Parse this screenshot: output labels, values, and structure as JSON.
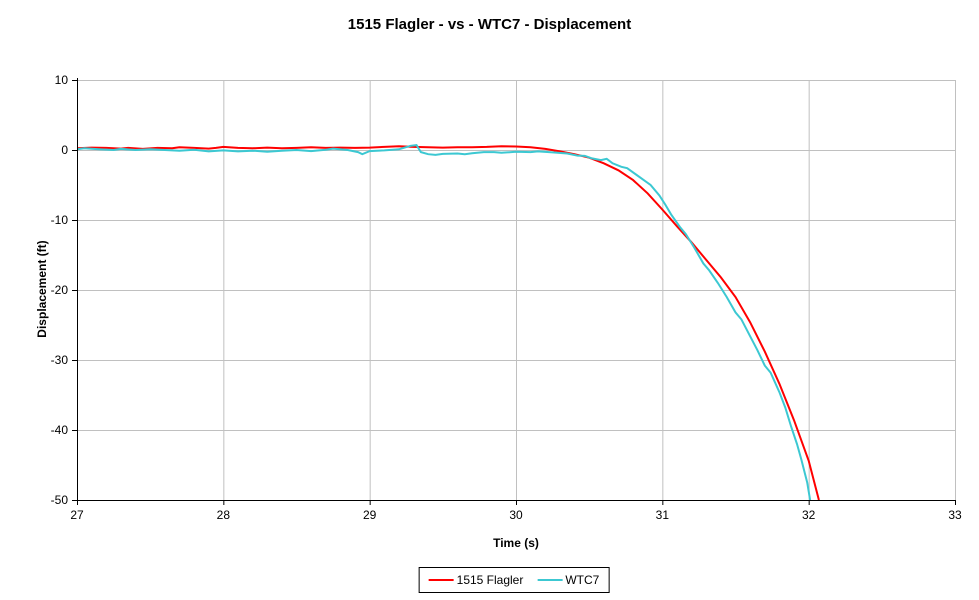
{
  "chart_data": {
    "type": "line",
    "title": "1515 Flagler - vs - WTC7 - Displacement",
    "xlabel": "Time (s)",
    "ylabel": "Displacement (ft)",
    "xlim": [
      27,
      33
    ],
    "ylim": [
      -50,
      10
    ],
    "xticks": [
      27,
      28,
      29,
      30,
      31,
      32,
      33
    ],
    "yticks": [
      10,
      0,
      -10,
      -20,
      -30,
      -40,
      -50
    ],
    "grid": true,
    "legend_position": "bottom-center",
    "colors": {
      "grid": "#c0c0c0",
      "axis": "#000000",
      "background": "#ffffff"
    },
    "series": [
      {
        "name": "1515 Flagler",
        "color": "#ff0000",
        "points": [
          [
            27.0,
            0.25
          ],
          [
            27.1,
            0.35
          ],
          [
            27.2,
            0.3
          ],
          [
            27.3,
            0.2
          ],
          [
            27.35,
            0.3
          ],
          [
            27.45,
            0.15
          ],
          [
            27.55,
            0.3
          ],
          [
            27.65,
            0.25
          ],
          [
            27.7,
            0.4
          ],
          [
            27.8,
            0.3
          ],
          [
            27.9,
            0.2
          ],
          [
            27.95,
            0.3
          ],
          [
            28.0,
            0.45
          ],
          [
            28.1,
            0.3
          ],
          [
            28.2,
            0.25
          ],
          [
            28.3,
            0.35
          ],
          [
            28.4,
            0.25
          ],
          [
            28.5,
            0.3
          ],
          [
            28.6,
            0.4
          ],
          [
            28.7,
            0.3
          ],
          [
            28.8,
            0.35
          ],
          [
            28.9,
            0.3
          ],
          [
            29.0,
            0.35
          ],
          [
            29.1,
            0.45
          ],
          [
            29.2,
            0.55
          ],
          [
            29.3,
            0.45
          ],
          [
            29.4,
            0.4
          ],
          [
            29.5,
            0.35
          ],
          [
            29.6,
            0.4
          ],
          [
            29.7,
            0.4
          ],
          [
            29.8,
            0.45
          ],
          [
            29.9,
            0.55
          ],
          [
            30.0,
            0.5
          ],
          [
            30.05,
            0.45
          ],
          [
            30.1,
            0.4
          ],
          [
            30.2,
            0.15
          ],
          [
            30.3,
            -0.2
          ],
          [
            30.4,
            -0.6
          ],
          [
            30.5,
            -1.1
          ],
          [
            30.6,
            -1.9
          ],
          [
            30.7,
            -2.9
          ],
          [
            30.8,
            -4.3
          ],
          [
            30.9,
            -6.2
          ],
          [
            31.0,
            -8.5
          ],
          [
            31.1,
            -10.9
          ],
          [
            31.2,
            -13.2
          ],
          [
            31.3,
            -15.7
          ],
          [
            31.4,
            -18.2
          ],
          [
            31.5,
            -21.0
          ],
          [
            31.6,
            -24.6
          ],
          [
            31.7,
            -28.8
          ],
          [
            31.8,
            -33.4
          ],
          [
            31.9,
            -38.6
          ],
          [
            32.0,
            -44.4
          ],
          [
            32.07,
            -50.0
          ]
        ]
      },
      {
        "name": "WTC7",
        "color": "#3cc8d2",
        "points": [
          [
            27.0,
            0.1
          ],
          [
            27.05,
            0.25
          ],
          [
            27.15,
            0.1
          ],
          [
            27.25,
            0.0
          ],
          [
            27.3,
            0.15
          ],
          [
            27.4,
            0.0
          ],
          [
            27.5,
            0.1
          ],
          [
            27.6,
            0.0
          ],
          [
            27.7,
            -0.1
          ],
          [
            27.8,
            0.05
          ],
          [
            27.9,
            -0.2
          ],
          [
            28.0,
            -0.05
          ],
          [
            28.1,
            -0.2
          ],
          [
            28.2,
            -0.1
          ],
          [
            28.3,
            -0.25
          ],
          [
            28.4,
            -0.1
          ],
          [
            28.5,
            0.0
          ],
          [
            28.6,
            -0.15
          ],
          [
            28.7,
            0.05
          ],
          [
            28.75,
            0.2
          ],
          [
            28.85,
            0.0
          ],
          [
            28.92,
            -0.3
          ],
          [
            28.95,
            -0.6
          ],
          [
            29.0,
            -0.15
          ],
          [
            29.1,
            -0.05
          ],
          [
            29.2,
            0.1
          ],
          [
            29.28,
            0.6
          ],
          [
            29.32,
            0.7
          ],
          [
            29.35,
            -0.3
          ],
          [
            29.4,
            -0.6
          ],
          [
            29.45,
            -0.7
          ],
          [
            29.5,
            -0.55
          ],
          [
            29.6,
            -0.5
          ],
          [
            29.65,
            -0.6
          ],
          [
            29.7,
            -0.45
          ],
          [
            29.78,
            -0.3
          ],
          [
            29.85,
            -0.3
          ],
          [
            29.9,
            -0.4
          ],
          [
            30.0,
            -0.25
          ],
          [
            30.1,
            -0.3
          ],
          [
            30.15,
            -0.2
          ],
          [
            30.25,
            -0.35
          ],
          [
            30.35,
            -0.5
          ],
          [
            30.42,
            -0.8
          ],
          [
            30.47,
            -0.85
          ],
          [
            30.52,
            -1.2
          ],
          [
            30.58,
            -1.45
          ],
          [
            30.62,
            -1.25
          ],
          [
            30.66,
            -1.9
          ],
          [
            30.72,
            -2.4
          ],
          [
            30.76,
            -2.6
          ],
          [
            30.82,
            -3.5
          ],
          [
            30.88,
            -4.4
          ],
          [
            30.92,
            -5.0
          ],
          [
            30.98,
            -6.5
          ],
          [
            31.02,
            -7.8
          ],
          [
            31.06,
            -9.2
          ],
          [
            31.12,
            -11.0
          ],
          [
            31.16,
            -12.0
          ],
          [
            31.22,
            -14.0
          ],
          [
            31.28,
            -16.2
          ],
          [
            31.32,
            -17.2
          ],
          [
            31.38,
            -19.0
          ],
          [
            31.44,
            -21.0
          ],
          [
            31.5,
            -23.2
          ],
          [
            31.54,
            -24.2
          ],
          [
            31.6,
            -26.6
          ],
          [
            31.65,
            -28.6
          ],
          [
            31.7,
            -30.8
          ],
          [
            31.74,
            -31.8
          ],
          [
            31.8,
            -34.6
          ],
          [
            31.84,
            -36.8
          ],
          [
            31.88,
            -39.5
          ],
          [
            31.92,
            -42.0
          ],
          [
            31.95,
            -44.2
          ],
          [
            31.99,
            -47.5
          ],
          [
            32.01,
            -50.0
          ]
        ]
      }
    ]
  }
}
